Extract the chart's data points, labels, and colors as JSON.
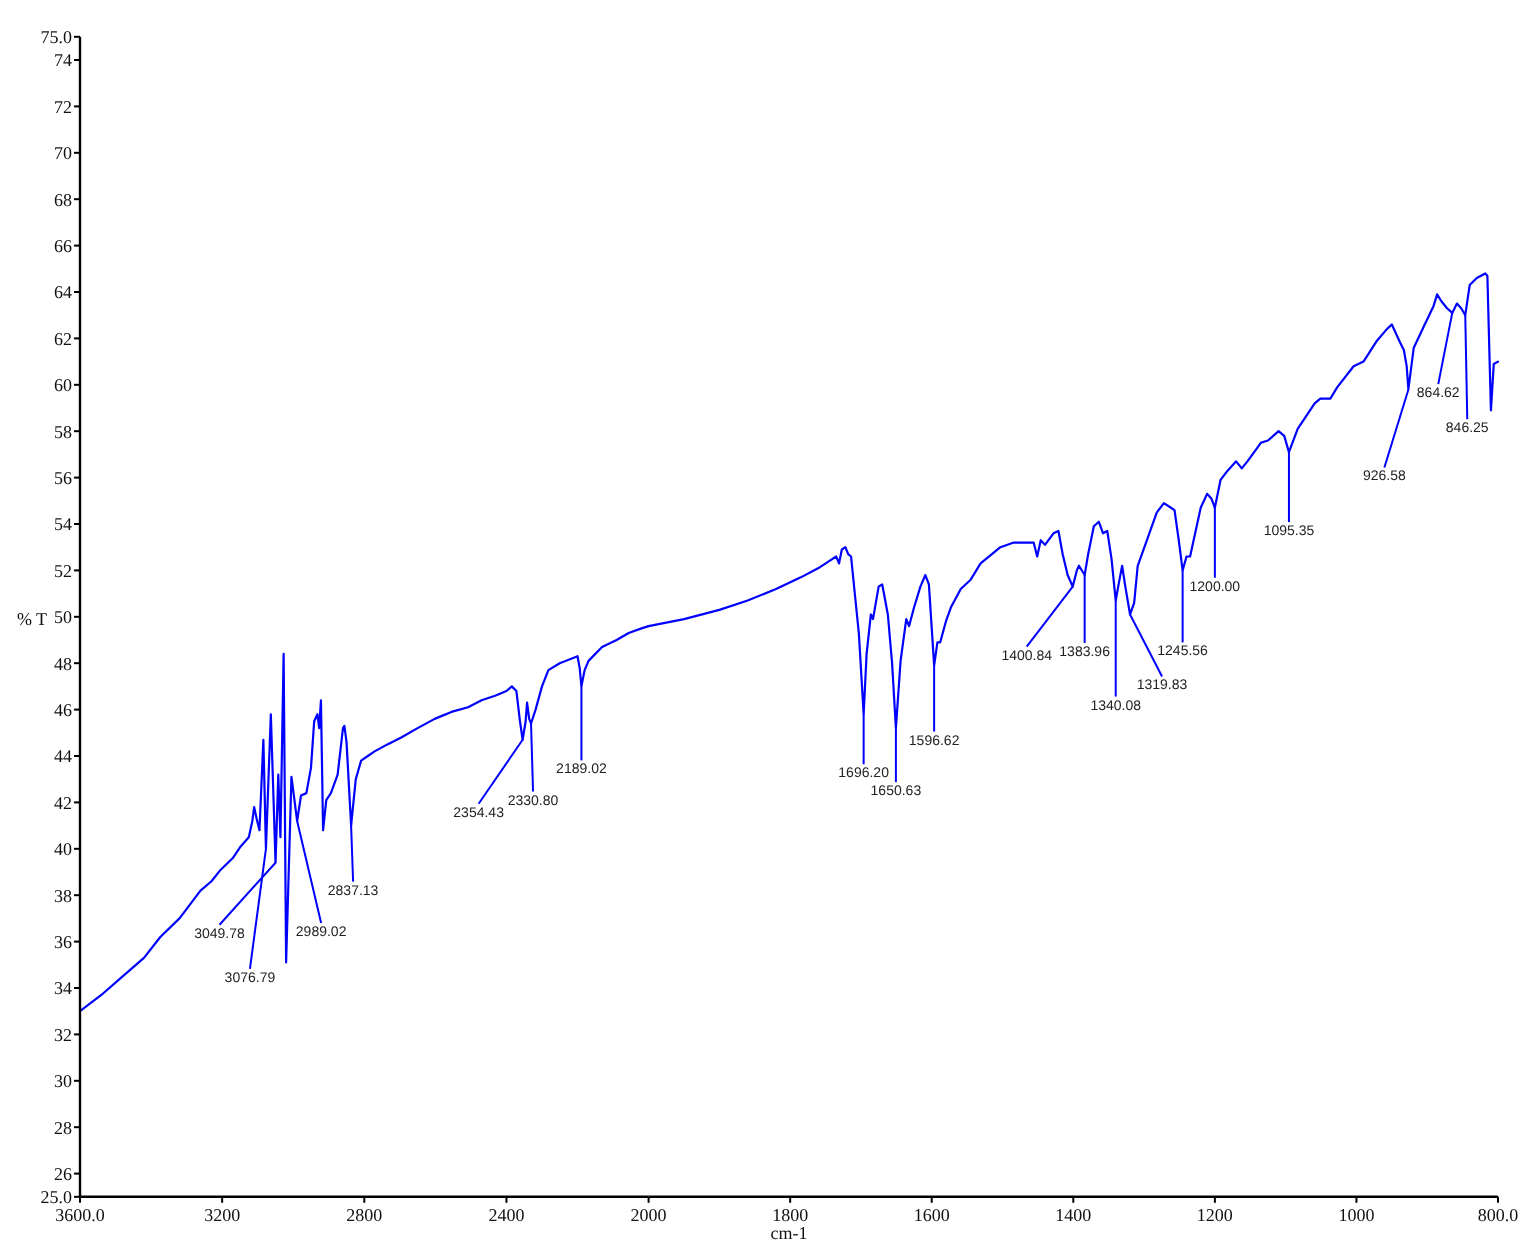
{
  "chart_data": [
    {
      "type": "line",
      "ylabel": "% T",
      "color": "#0000ff",
      "xlim": [
        3600,
        2000
      ],
      "xticks": [
        {
          "value": 3600,
          "label": "3600.0"
        },
        3200,
        2800,
        2400,
        2000
      ],
      "ylim": [
        25,
        75
      ],
      "yticks": [
        {
          "value": 75,
          "label": "75.0"
        },
        74,
        72,
        70,
        68,
        66,
        64,
        62,
        60,
        58,
        56,
        54,
        52,
        50,
        48,
        46,
        44,
        42,
        40,
        38,
        36,
        34,
        32,
        30,
        28,
        26,
        {
          "value": 25,
          "label": "25.0"
        }
      ],
      "x": [
        3600,
        3540,
        3480,
        3420,
        3374,
        3320,
        3261,
        3230,
        3204,
        3170,
        3148,
        3125,
        3115,
        3110,
        3103,
        3095,
        3084,
        3076.79,
        3063,
        3049.78,
        3042,
        3036,
        3027,
        3020,
        3005,
        2989.02,
        2978,
        2963,
        2950,
        2941,
        2932,
        2927,
        2922,
        2916,
        2907,
        2894,
        2875,
        2860,
        2856,
        2850,
        2837.13,
        2824,
        2809,
        2790,
        2771,
        2735,
        2696,
        2650,
        2602,
        2555,
        2508,
        2470,
        2432,
        2400,
        2385,
        2372,
        2362,
        2354.43,
        2346,
        2342,
        2336,
        2330.8,
        2318,
        2300,
        2282,
        2250,
        2216,
        2200,
        2194,
        2189.02,
        2180,
        2169,
        2131,
        2090,
        2056,
        2020,
        2000
      ],
      "values": [
        33.0,
        33.7,
        34.5,
        35.3,
        36.2,
        37.0,
        38.2,
        38.6,
        39.1,
        39.6,
        40.1,
        40.5,
        41.2,
        41.8,
        41.3,
        40.8,
        44.7,
        40.0,
        45.8,
        39.4,
        43.2,
        40.5,
        48.4,
        35.1,
        43.1,
        41.2,
        42.3,
        42.4,
        43.5,
        45.5,
        45.8,
        45.2,
        46.4,
        40.8,
        42.1,
        42.4,
        43.2,
        45.2,
        45.3,
        44.6,
        41.0,
        43.0,
        43.8,
        44.0,
        44.2,
        44.5,
        44.8,
        45.2,
        45.6,
        45.9,
        46.1,
        46.4,
        46.6,
        46.8,
        47.0,
        46.8,
        45.5,
        44.7,
        45.5,
        46.3,
        45.6,
        45.4,
        46.0,
        47.0,
        47.7,
        48.0,
        48.2,
        48.3,
        47.8,
        47.0,
        47.7,
        48.1,
        48.7,
        49.0,
        49.3,
        49.5,
        49.6
      ],
      "annotations": [
        {
          "text": "3076.79",
          "x": 3076.79,
          "y": 40.0
        },
        {
          "text": "3049.78",
          "x": 3049.78,
          "y": 39.4
        },
        {
          "text": "2989.02",
          "x": 2989.02,
          "y": 41.2
        },
        {
          "text": "2837.13",
          "x": 2837.13,
          "y": 41.0
        },
        {
          "text": "2354.43",
          "x": 2354.43,
          "y": 44.7
        },
        {
          "text": "2330.80",
          "x": 2330.8,
          "y": 45.4
        },
        {
          "text": "2189.02",
          "x": 2189.02,
          "y": 47.0
        }
      ]
    },
    {
      "type": "line",
      "xlabel": "cm-1",
      "color": "#0000ff",
      "tick_labels": "x",
      "xlim": [
        2000,
        800
      ],
      "xticks": [
        1800,
        1600,
        1400,
        1200,
        1000,
        {
          "value": 800,
          "label": "800.0"
        }
      ],
      "ylim": [
        25,
        75
      ],
      "x": [
        2000,
        1950,
        1900,
        1860,
        1820,
        1785,
        1760,
        1745,
        1735,
        1731,
        1727,
        1722,
        1718,
        1714,
        1708,
        1703,
        1696.2,
        1692,
        1686,
        1683,
        1675,
        1670,
        1662,
        1656,
        1650.63,
        1644,
        1636,
        1632,
        1625,
        1616,
        1609,
        1604,
        1600,
        1596.62,
        1592,
        1588,
        1580,
        1573,
        1559,
        1545,
        1531,
        1515,
        1503,
        1484,
        1456,
        1451,
        1446,
        1440,
        1428,
        1421,
        1415,
        1408,
        1400.84,
        1395,
        1392,
        1383.96,
        1379,
        1371,
        1364,
        1358,
        1352,
        1346,
        1340.08,
        1336,
        1331,
        1327,
        1319.83,
        1314,
        1309,
        1296,
        1282,
        1272,
        1262,
        1257,
        1251,
        1245.56,
        1240,
        1235,
        1225,
        1220,
        1211,
        1205,
        1200,
        1192,
        1182,
        1170,
        1162,
        1154,
        1135,
        1125,
        1110,
        1102,
        1095.35,
        1083,
        1059,
        1051,
        1037,
        1027,
        1004,
        990,
        971,
        957,
        950,
        938,
        933,
        929,
        926.58,
        919,
        905,
        891,
        886,
        880,
        872,
        864.62,
        858,
        852,
        846.25,
        840,
        830,
        818,
        815,
        810,
        806,
        800
      ],
      "values": [
        49.6,
        49.9,
        50.3,
        50.7,
        51.2,
        51.7,
        52.1,
        52.4,
        52.6,
        52.3,
        52.9,
        53.0,
        52.7,
        52.6,
        50.8,
        49.3,
        45.8,
        48.4,
        50.1,
        49.9,
        51.3,
        51.4,
        50.1,
        48.0,
        45.2,
        48.1,
        49.9,
        49.6,
        50.4,
        51.3,
        51.8,
        51.4,
        49.5,
        47.9,
        48.9,
        48.9,
        49.8,
        50.4,
        51.2,
        51.6,
        52.3,
        52.7,
        53.0,
        53.2,
        53.2,
        52.6,
        53.3,
        53.1,
        53.6,
        53.7,
        52.7,
        51.8,
        51.3,
        52.0,
        52.2,
        51.8,
        52.7,
        53.9,
        54.1,
        53.6,
        53.7,
        52.5,
        50.7,
        51.4,
        52.2,
        51.4,
        50.1,
        50.6,
        52.2,
        53.3,
        54.5,
        54.9,
        54.7,
        54.6,
        53.3,
        52.0,
        52.6,
        52.6,
        54.0,
        54.7,
        55.3,
        55.1,
        54.7,
        55.9,
        56.3,
        56.7,
        56.4,
        56.7,
        57.5,
        57.6,
        58.0,
        57.8,
        57.1,
        58.1,
        59.2,
        59.4,
        59.4,
        59.9,
        60.8,
        61.0,
        61.9,
        62.4,
        62.6,
        61.8,
        61.5,
        60.8,
        59.8,
        61.6,
        62.5,
        63.4,
        63.9,
        63.6,
        63.3,
        63.1,
        63.5,
        63.3,
        63.0,
        64.3,
        64.6,
        64.8,
        64.7,
        58.9,
        60.9,
        61.0
      ],
      "annotations": [
        {
          "text": "1696.20",
          "x": 1696.2,
          "y": 45.8
        },
        {
          "text": "1650.63",
          "x": 1650.63,
          "y": 45.2
        },
        {
          "text": "1596.62",
          "x": 1596.62,
          "y": 47.9
        },
        {
          "text": "1400.84",
          "x": 1400.84,
          "y": 51.3
        },
        {
          "text": "1383.96",
          "x": 1383.96,
          "y": 51.8
        },
        {
          "text": "1340.08",
          "x": 1340.08,
          "y": 50.7
        },
        {
          "text": "1319.83",
          "x": 1319.83,
          "y": 50.1
        },
        {
          "text": "1245.56",
          "x": 1245.56,
          "y": 52.0
        },
        {
          "text": "1200.00",
          "x": 1200,
          "y": 54.7
        },
        {
          "text": "1095.35",
          "x": 1095.35,
          "y": 57.1
        },
        {
          "text": "926.58",
          "x": 926.58,
          "y": 59.8
        },
        {
          "text": "864.62",
          "x": 864.62,
          "y": 63.1
        },
        {
          "text": "846.25",
          "x": 846.25,
          "y": 63.0
        }
      ]
    }
  ]
}
